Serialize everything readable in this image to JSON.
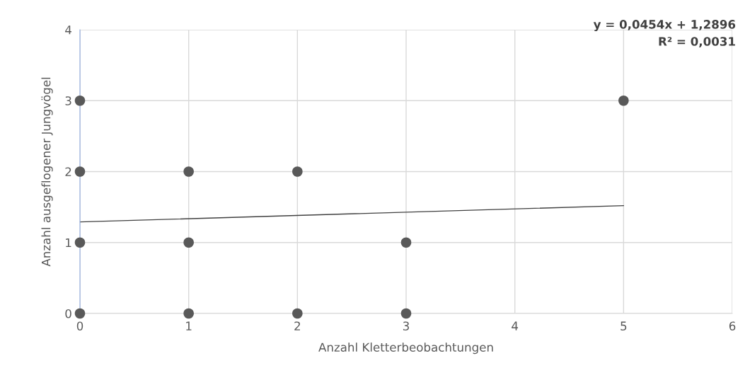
{
  "chart_data": {
    "type": "scatter",
    "xlabel": "Anzahl Kletterbeobachtungen",
    "ylabel": "Anzahl ausgeflogener Jungvögel",
    "annotations": [
      "y = 0,0454x + 1,2896",
      "R² = 0,0031"
    ],
    "series": [
      {
        "marker": "circle",
        "color": "#595959",
        "x": [
          0,
          0,
          0,
          0,
          1,
          1,
          1,
          2,
          2,
          3,
          3,
          5
        ],
        "values": [
          0,
          1,
          2,
          3,
          0,
          1,
          2,
          0,
          2,
          0,
          1,
          3
        ]
      },
      {
        "type": "line",
        "color": "#404040",
        "x": [
          0,
          5
        ],
        "values": [
          1.29,
          1.52
        ]
      }
    ],
    "xlim": [
      0,
      6
    ],
    "xticks": [
      0,
      1,
      2,
      3,
      4,
      5,
      6
    ],
    "ylim": [
      0,
      4
    ],
    "yticks": [
      0,
      1,
      2,
      3,
      4
    ],
    "grid": true
  }
}
